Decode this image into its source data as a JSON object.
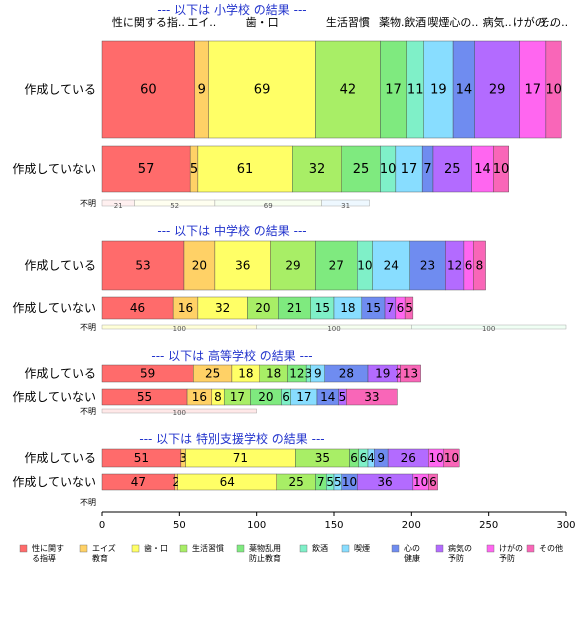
{
  "chart_data": {
    "type": "bar",
    "orientation": "horizontal",
    "stacked": true,
    "xlim": [
      0,
      300
    ],
    "xticks": [
      0,
      50,
      100,
      150,
      200,
      250,
      300
    ],
    "grid": false,
    "legend_position": "bottom",
    "categories": [
      {
        "label": "性に関する指導",
        "legend_label": "性に関す\nる指導",
        "color": "#ff6b6b"
      },
      {
        "label": "エイズ教育",
        "legend_label": "エイズ\n教育",
        "color": "#ffd166"
      },
      {
        "label": "歯・口",
        "legend_label": "歯・口",
        "color": "#ffff66"
      },
      {
        "label": "生活習慣",
        "legend_label": "生活習慣",
        "color": "#a8ee66"
      },
      {
        "label": "薬物乱用防止教育",
        "legend_label": "薬物乱用\n防止教育",
        "color": "#7fea7f"
      },
      {
        "label": "飲酒",
        "legend_label": "飲酒",
        "color": "#7ff0c8"
      },
      {
        "label": "喫煙",
        "legend_label": "喫煙",
        "color": "#88ddff"
      },
      {
        "label": "心の健康",
        "legend_label": "心の\n健康",
        "color": "#6f8cf0"
      },
      {
        "label": "病気の予防",
        "legend_label": "病気の\n予防",
        "color": "#b36bff"
      },
      {
        "label": "けがの予防",
        "legend_label": "けがの\n予防",
        "color": "#ff66f0"
      },
      {
        "label": "その他",
        "legend_label": "その他",
        "color": "#f966b8"
      }
    ],
    "column_headers": [
      "性に関する指..",
      "エイ..",
      "歯・口",
      "生活習慣",
      "薬物..",
      "飲酒",
      "喫煙",
      "心の..",
      "病気..",
      "けがの..",
      "その.."
    ],
    "sections": [
      {
        "title": "--- 以下は 小学校 の結果 ---",
        "bars": [
          {
            "label": "作成している",
            "values": [
              60,
              9,
              69,
              42,
              17,
              11,
              19,
              14,
              29,
              17,
              10
            ],
            "value_labels": [
              "60",
              "9",
              "69",
              "42",
              "17",
              "11",
              "19",
              "14",
              "29",
              "17",
              "10"
            ]
          },
          {
            "label": "作成していない",
            "values": [
              57,
              5,
              61,
              32,
              25,
              10,
              17,
              7,
              25,
              14,
              10
            ],
            "value_labels": [
              "57",
              "5",
              "61",
              "32",
              "25",
              "10",
              "17",
              "7",
              "25",
              "14",
              "10"
            ]
          },
          {
            "label": "不明",
            "values": [
              21,
              0,
              52,
              0,
              0,
              0,
              0,
              0,
              0,
              0,
              0
            ],
            "value_labels": [
              "21",
              "",
              "52",
              "",
              "",
              "",
              "",
              "",
              "",
              "",
              ""
            ],
            "style": "pale"
          }
        ],
        "pale_overlay": {
          "values": [
            21,
            52,
            69,
            31
          ],
          "labels": [
            "21",
            "52",
            "69",
            "31"
          ]
        }
      },
      {
        "title": "--- 以下は 中学校 の結果 ---",
        "bars": [
          {
            "label": "作成している",
            "values": [
              53,
              20,
              36,
              29,
              27,
              10,
              24,
              23,
              12,
              6,
              8
            ],
            "value_labels": [
              "53",
              "20",
              "36",
              "29",
              "27",
              "10",
              "24",
              "23",
              "12",
              "6",
              "8"
            ]
          },
          {
            "label": "作成していない",
            "values": [
              46,
              16,
              32,
              20,
              21,
              15,
              18,
              15,
              7,
              6,
              5
            ],
            "value_labels": [
              "46",
              "16",
              "32",
              "20",
              "21",
              "15",
              "18",
              "15",
              "7",
              "6",
              "5"
            ]
          }
        ],
        "pale_overlay": {
          "values": [
            100,
            100,
            100
          ],
          "labels": [
            "100",
            "100",
            "100"
          ]
        }
      },
      {
        "title": "--- 以下は 高等学校 の結果 ---",
        "bars": [
          {
            "label": "作成している",
            "values": [
              59,
              25,
              18,
              18,
              12,
              3,
              9,
              28,
              19,
              2,
              13
            ],
            "value_labels": [
              "59",
              "25",
              "18",
              "18",
              "12",
              "3",
              "9",
              "28",
              "19",
              "2",
              "13"
            ]
          },
          {
            "label": "作成していない",
            "values": [
              55,
              16,
              8,
              17,
              20,
              6,
              17,
              14,
              5,
              0,
              33
            ],
            "value_labels": [
              "55",
              "16",
              "8",
              "17",
              "20",
              "6",
              "17",
              "14",
              "5",
              "",
              "33"
            ]
          }
        ],
        "pale_overlay": {
          "values": [
            100
          ],
          "labels": [
            "100"
          ]
        }
      },
      {
        "title": "--- 以下は 特別支援学校 の結果 ---",
        "bars": [
          {
            "label": "作成している",
            "values": [
              51,
              3,
              71,
              35,
              6,
              6,
              4,
              9,
              26,
              10,
              10
            ],
            "value_labels": [
              "51",
              "3",
              "71",
              "35",
              "6",
              "6",
              "4",
              "9",
              "26",
              "10",
              "10"
            ]
          },
          {
            "label": "作成していない",
            "values": [
              47,
              2,
              64,
              25,
              7,
              5,
              5,
              10,
              36,
              10,
              6
            ],
            "value_labels": [
              "47",
              "2",
              "64",
              "25",
              "7",
              "5",
              "5",
              "10",
              "36",
              "10",
              "6"
            ]
          }
        ],
        "pale_overlay": {
          "values": [],
          "labels": []
        }
      }
    ],
    "unknown_label": "不明"
  }
}
